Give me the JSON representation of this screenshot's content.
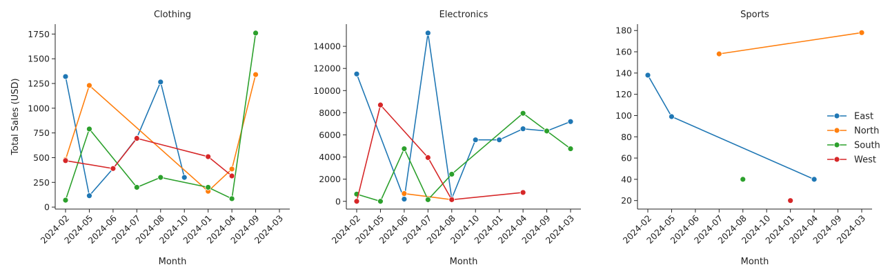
{
  "chart_data": {
    "type": "line",
    "ylabel": "Total Sales (USD)",
    "xlabel": "Month",
    "x": [
      "2024-02",
      "2024-05",
      "2024-06",
      "2024-07",
      "2024-08",
      "2024-10",
      "2024-01",
      "2024-04",
      "2024-09",
      "2024-03"
    ],
    "legend": {
      "placement": "right",
      "entries": [
        "East",
        "North",
        "South",
        "West"
      ]
    },
    "colors": {
      "East": "#1f77b4",
      "North": "#ff7f0e",
      "South": "#2ca02c",
      "West": "#d62728"
    },
    "grid": false,
    "panels": [
      {
        "title": "Clothing",
        "ylim": [
          -20,
          1850
        ],
        "yticks": [
          0,
          250,
          500,
          750,
          1000,
          1250,
          1500,
          1750
        ],
        "series": [
          {
            "name": "East",
            "points": [
              [
                "2024-02",
                1320
              ],
              [
                "2024-05",
                115
              ],
              [
                "2024-06",
                390
              ],
              [
                "2024-07",
                700
              ],
              [
                "2024-08",
                1265
              ],
              [
                "2024-10",
                300
              ]
            ]
          },
          {
            "name": "North",
            "points": [
              [
                "2024-02",
                480
              ],
              [
                "2024-05",
                1230
              ],
              [
                "2024-01",
                160
              ],
              [
                "2024-04",
                385
              ],
              [
                "2024-09",
                1340
              ]
            ]
          },
          {
            "name": "South",
            "points": [
              [
                "2024-02",
                70
              ],
              [
                "2024-05",
                790
              ],
              [
                "2024-07",
                200
              ],
              [
                "2024-08",
                300
              ],
              [
                "2024-01",
                200
              ],
              [
                "2024-04",
                85
              ],
              [
                "2024-09",
                1760
              ]
            ]
          },
          {
            "name": "West",
            "points": [
              [
                "2024-02",
                470
              ],
              [
                "2024-06",
                390
              ],
              [
                "2024-07",
                695
              ],
              [
                "2024-01",
                510
              ],
              [
                "2024-04",
                315
              ]
            ]
          }
        ]
      },
      {
        "title": "Electronics",
        "ylim": [
          -700,
          16000
        ],
        "yticks": [
          0,
          2000,
          4000,
          6000,
          8000,
          10000,
          12000,
          14000
        ],
        "series": [
          {
            "name": "East",
            "points": [
              [
                "2024-02",
                11500
              ],
              [
                "2024-06",
                200
              ],
              [
                "2024-07",
                15200
              ],
              [
                "2024-08",
                250
              ],
              [
                "2024-10",
                5550
              ],
              [
                "2024-01",
                5550
              ],
              [
                "2024-04",
                6550
              ],
              [
                "2024-09",
                6350
              ],
              [
                "2024-03",
                7200
              ]
            ]
          },
          {
            "name": "North",
            "points": [
              [
                "2024-06",
                700
              ],
              [
                "2024-08",
                150
              ]
            ]
          },
          {
            "name": "South",
            "points": [
              [
                "2024-02",
                650
              ],
              [
                "2024-05",
                0
              ],
              [
                "2024-06",
                4750
              ],
              [
                "2024-07",
                150
              ],
              [
                "2024-08",
                2450
              ],
              [
                "2024-04",
                7950
              ],
              [
                "2024-09",
                6350
              ],
              [
                "2024-03",
                4750
              ]
            ]
          },
          {
            "name": "West",
            "points": [
              [
                "2024-02",
                0
              ],
              [
                "2024-05",
                8700
              ],
              [
                "2024-07",
                3950
              ],
              [
                "2024-08",
                150
              ],
              [
                "2024-04",
                800
              ]
            ]
          }
        ]
      },
      {
        "title": "Sports",
        "ylim": [
          12,
          186
        ],
        "yticks": [
          20,
          40,
          60,
          80,
          100,
          120,
          140,
          160,
          180
        ],
        "series": [
          {
            "name": "East",
            "points": [
              [
                "2024-02",
                138
              ],
              [
                "2024-05",
                99
              ],
              [
                "2024-04",
                40
              ]
            ]
          },
          {
            "name": "North",
            "points": [
              [
                "2024-07",
                158
              ],
              [
                "2024-03",
                178
              ]
            ]
          },
          {
            "name": "South",
            "points": [
              [
                "2024-08",
                40
              ]
            ]
          },
          {
            "name": "West",
            "points": [
              [
                "2024-01",
                20
              ]
            ]
          }
        ]
      }
    ]
  }
}
